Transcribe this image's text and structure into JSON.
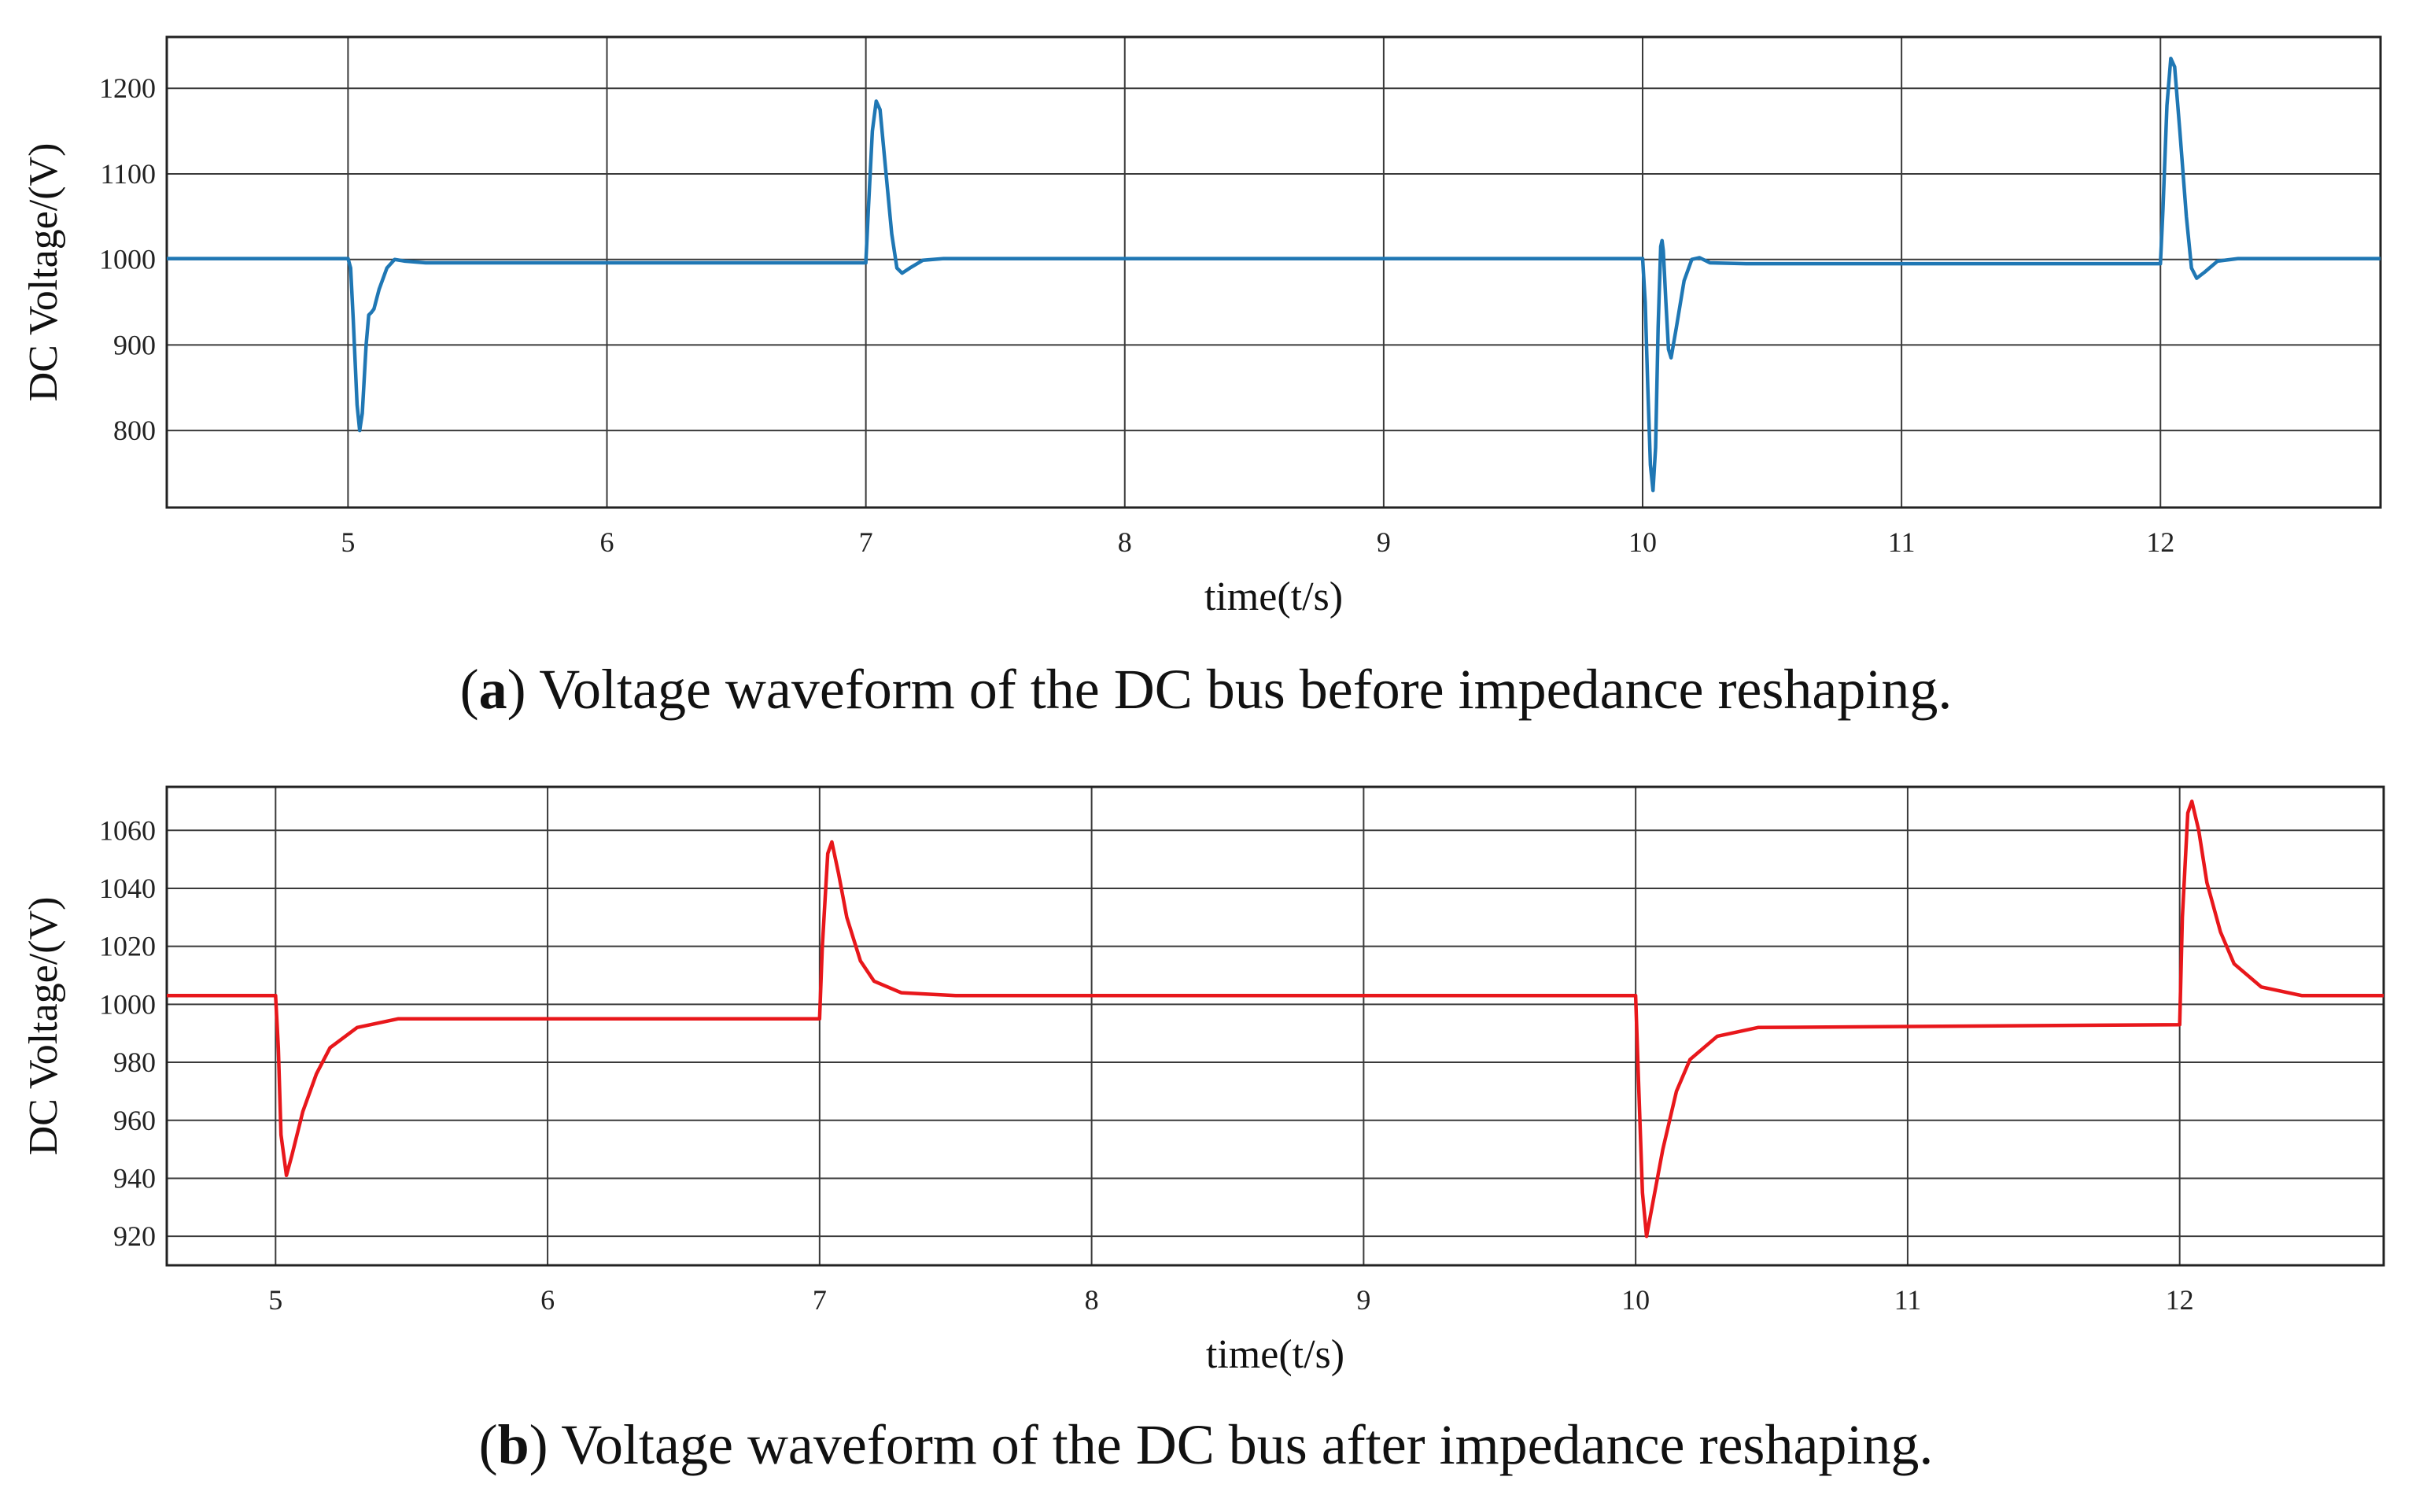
{
  "chart_data": [
    {
      "type": "line",
      "panel": "a",
      "caption_letter": "a",
      "caption_text": ") Voltage waveform of the DC bus before impedance reshaping.",
      "caption_open": "(",
      "xlabel": "time(t/s)",
      "ylabel": "DC Voltage/(V)",
      "xlim": [
        4.3,
        12.85
      ],
      "ylim": [
        710,
        1260
      ],
      "x_ticks": [
        5,
        6,
        7,
        8,
        9,
        10,
        11,
        12
      ],
      "y_ticks": [
        800,
        900,
        1000,
        1100,
        1200
      ],
      "grid": true,
      "line_color": "#1f77b4",
      "series": [
        {
          "values": [
            [
              4.3,
              1001
            ],
            [
              5.0,
              1001
            ],
            [
              5.01,
              990
            ],
            [
              5.02,
              930
            ],
            [
              5.035,
              830
            ],
            [
              5.045,
              800
            ],
            [
              5.055,
              820
            ],
            [
              5.07,
              900
            ],
            [
              5.08,
              935
            ],
            [
              5.09,
              938
            ],
            [
              5.1,
              942
            ],
            [
              5.12,
              965
            ],
            [
              5.15,
              990
            ],
            [
              5.18,
              1000
            ],
            [
              5.22,
              998
            ],
            [
              5.3,
              996
            ],
            [
              7.0,
              996
            ],
            [
              7.01,
              1060
            ],
            [
              7.025,
              1150
            ],
            [
              7.04,
              1185
            ],
            [
              7.055,
              1175
            ],
            [
              7.075,
              1110
            ],
            [
              7.1,
              1030
            ],
            [
              7.12,
              990
            ],
            [
              7.14,
              984
            ],
            [
              7.17,
              990
            ],
            [
              7.22,
              999
            ],
            [
              7.3,
              1001
            ],
            [
              10.0,
              1001
            ],
            [
              10.01,
              950
            ],
            [
              10.02,
              850
            ],
            [
              10.03,
              760
            ],
            [
              10.04,
              730
            ],
            [
              10.05,
              780
            ],
            [
              10.06,
              920
            ],
            [
              10.07,
              1015
            ],
            [
              10.075,
              1022
            ],
            [
              10.08,
              1010
            ],
            [
              10.09,
              950
            ],
            [
              10.1,
              895
            ],
            [
              10.11,
              885
            ],
            [
              10.13,
              920
            ],
            [
              10.16,
              975
            ],
            [
              10.19,
              1000
            ],
            [
              10.22,
              1002
            ],
            [
              10.26,
              996
            ],
            [
              10.4,
              995
            ],
            [
              12.0,
              995
            ],
            [
              12.01,
              1060
            ],
            [
              12.025,
              1180
            ],
            [
              12.04,
              1235
            ],
            [
              12.055,
              1225
            ],
            [
              12.075,
              1150
            ],
            [
              12.1,
              1050
            ],
            [
              12.12,
              990
            ],
            [
              12.14,
              978
            ],
            [
              12.17,
              985
            ],
            [
              12.22,
              998
            ],
            [
              12.3,
              1001
            ],
            [
              12.85,
              1001
            ]
          ]
        }
      ]
    },
    {
      "type": "line",
      "panel": "b",
      "caption_letter": "b",
      "caption_text": ") Voltage waveform of the DC bus after impedance reshaping.",
      "caption_open": "(",
      "xlabel": "time(t/s)",
      "ylabel": "DC Voltage/(V)",
      "xlim": [
        4.6,
        12.75
      ],
      "ylim": [
        910,
        1075
      ],
      "x_ticks": [
        5,
        6,
        7,
        8,
        9,
        10,
        11,
        12
      ],
      "y_ticks": [
        920,
        940,
        960,
        980,
        1000,
        1020,
        1040,
        1060
      ],
      "grid": true,
      "line_color": "#e8171b",
      "series": [
        {
          "values": [
            [
              4.6,
              1003
            ],
            [
              5.0,
              1003
            ],
            [
              5.01,
              985
            ],
            [
              5.02,
              955
            ],
            [
              5.04,
              941
            ],
            [
              5.06,
              948
            ],
            [
              5.1,
              963
            ],
            [
              5.15,
              976
            ],
            [
              5.2,
              985
            ],
            [
              5.3,
              992
            ],
            [
              5.45,
              995
            ],
            [
              7.0,
              995
            ],
            [
              7.01,
              1020
            ],
            [
              7.03,
              1052
            ],
            [
              7.045,
              1056
            ],
            [
              7.07,
              1045
            ],
            [
              7.1,
              1030
            ],
            [
              7.15,
              1015
            ],
            [
              7.2,
              1008
            ],
            [
              7.3,
              1004
            ],
            [
              7.5,
              1003
            ],
            [
              10.0,
              1003
            ],
            [
              10.01,
              975
            ],
            [
              10.025,
              935
            ],
            [
              10.04,
              920
            ],
            [
              10.06,
              930
            ],
            [
              10.1,
              950
            ],
            [
              10.15,
              970
            ],
            [
              10.2,
              981
            ],
            [
              10.3,
              989
            ],
            [
              10.45,
              992
            ],
            [
              12.0,
              993
            ],
            [
              12.01,
              1030
            ],
            [
              12.03,
              1066
            ],
            [
              12.045,
              1070
            ],
            [
              12.07,
              1060
            ],
            [
              12.1,
              1042
            ],
            [
              12.15,
              1025
            ],
            [
              12.2,
              1014
            ],
            [
              12.3,
              1006
            ],
            [
              12.45,
              1003
            ],
            [
              12.75,
              1003
            ]
          ]
        }
      ]
    }
  ]
}
